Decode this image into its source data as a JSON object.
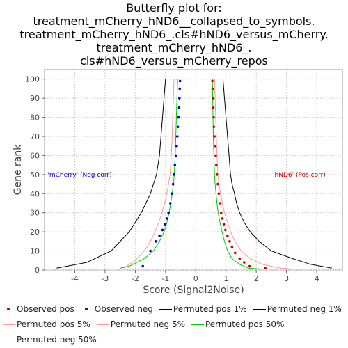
{
  "chart_data": {
    "type": "scatter",
    "title_lines": [
      "Butterfly plot for:",
      "treatment_mCherry_hND6__collapsed_to_symbols.",
      "treatment_mCherry_hND6_.cls#hND6_versus_mCherry.",
      "treatment_mCherry_hND6_.",
      "cls#hND6_versus_mCherry_repos"
    ],
    "xlabel": "Score (Signal2Noise)",
    "ylabel": "Gene rank",
    "xlim": [
      -5.0,
      4.85
    ],
    "ylim": [
      0,
      105
    ],
    "x_ticks": [
      -4,
      -3,
      -2,
      -1,
      0,
      1,
      2,
      3,
      4
    ],
    "y_ticks": [
      0,
      10,
      20,
      30,
      40,
      50,
      60,
      70,
      80,
      90,
      100
    ],
    "grid": true,
    "annotations": [
      {
        "text": "'mCherry' (Neg corr)",
        "color": "#0000cc",
        "x": -4.9,
        "y": 50
      },
      {
        "text": "'hND6' (Pos corr)",
        "color": "#cc0000",
        "x": 2.55,
        "y": 50
      }
    ],
    "series": [
      {
        "name": "Observed pos",
        "kind": "points",
        "color": "#cc0000",
        "x": [
          0.55,
          0.56,
          0.57,
          0.58,
          0.59,
          0.6,
          0.62,
          0.64,
          0.66,
          0.68,
          0.7,
          0.73,
          0.76,
          0.8,
          0.84,
          0.88,
          0.93,
          0.98,
          1.05,
          1.12,
          1.2,
          1.3,
          1.45,
          1.6,
          1.78,
          2.3
        ],
        "y": [
          99,
          95,
          90,
          85,
          80,
          75,
          70,
          65,
          60,
          55,
          50,
          45,
          40,
          35,
          30,
          27,
          24,
          21,
          18,
          15,
          12,
          9,
          6,
          4,
          2,
          1
        ]
      },
      {
        "name": "Observed neg",
        "kind": "points",
        "color": "#0000cc",
        "x": [
          -0.52,
          -0.53,
          -0.54,
          -0.55,
          -0.57,
          -0.59,
          -0.61,
          -0.63,
          -0.66,
          -0.69,
          -0.72,
          -0.75,
          -0.79,
          -0.84,
          -0.9,
          -0.96,
          -1.02,
          -1.1,
          -1.2,
          -1.32,
          -1.5,
          -1.75
        ],
        "y": [
          99,
          95,
          90,
          85,
          80,
          75,
          70,
          65,
          60,
          55,
          50,
          45,
          40,
          35,
          30,
          27,
          24,
          21,
          18,
          15,
          10,
          2
        ]
      },
      {
        "name": "Permuted pos 1%",
        "kind": "line",
        "color": "#000000",
        "x": [
          0.9,
          0.95,
          1.0,
          1.05,
          1.1,
          1.15,
          1.2,
          1.28,
          1.35,
          1.45,
          1.6,
          1.8,
          2.1,
          2.5,
          3.2,
          3.8,
          4.5
        ],
        "y": [
          100,
          90,
          80,
          70,
          60,
          50,
          45,
          40,
          35,
          30,
          25,
          20,
          15,
          10,
          6,
          3,
          1
        ]
      },
      {
        "name": "Permuted neg 1%",
        "kind": "line",
        "color": "#000000",
        "x": [
          -1.0,
          -1.05,
          -1.1,
          -1.15,
          -1.2,
          -1.3,
          -1.4,
          -1.5,
          -1.65,
          -1.8,
          -2.0,
          -2.2,
          -2.5,
          -2.8,
          -3.6,
          -4.6
        ],
        "y": [
          100,
          90,
          80,
          70,
          60,
          50,
          45,
          40,
          35,
          30,
          25,
          20,
          15,
          10,
          4,
          1
        ]
      },
      {
        "name": "Permuted pos 5%",
        "kind": "line",
        "color": "#ff9999",
        "x": [
          0.62,
          0.64,
          0.66,
          0.68,
          0.7,
          0.73,
          0.77,
          0.82,
          0.88,
          0.95,
          1.05,
          1.15,
          1.3,
          1.5,
          1.8,
          2.2,
          2.8,
          3.2
        ],
        "y": [
          100,
          90,
          80,
          70,
          60,
          50,
          45,
          40,
          35,
          30,
          25,
          20,
          15,
          10,
          6,
          3,
          1,
          0.5
        ]
      },
      {
        "name": "Permuted neg 5%",
        "kind": "line",
        "color": "#ff9999",
        "x": [
          -0.72,
          -0.74,
          -0.76,
          -0.78,
          -0.81,
          -0.85,
          -0.9,
          -0.96,
          -1.03,
          -1.12,
          -1.22,
          -1.35,
          -1.5,
          -1.7,
          -2.0,
          -2.4
        ],
        "y": [
          100,
          90,
          80,
          70,
          60,
          50,
          45,
          40,
          35,
          30,
          25,
          20,
          15,
          10,
          5,
          1
        ]
      },
      {
        "name": "Permuted pos 50%",
        "kind": "line",
        "color": "#00cc00",
        "x": [
          0.55,
          0.56,
          0.57,
          0.58,
          0.6,
          0.62,
          0.64,
          0.67,
          0.7,
          0.74,
          0.8,
          0.87,
          0.95,
          1.05,
          1.2,
          1.45,
          1.75,
          2.2
        ],
        "y": [
          100,
          90,
          80,
          70,
          60,
          50,
          45,
          40,
          35,
          30,
          25,
          20,
          15,
          10,
          6,
          3,
          1,
          0.5
        ]
      },
      {
        "name": "Permuted neg 50%",
        "kind": "line",
        "color": "#00cc00",
        "x": [
          -0.6,
          -0.62,
          -0.64,
          -0.66,
          -0.68,
          -0.71,
          -0.74,
          -0.78,
          -0.83,
          -0.88,
          -0.95,
          -1.05,
          -1.2,
          -1.4,
          -1.7,
          -2.2,
          -2.5
        ],
        "y": [
          100,
          90,
          80,
          70,
          60,
          50,
          45,
          40,
          35,
          30,
          25,
          20,
          15,
          10,
          6,
          2,
          1
        ]
      }
    ]
  },
  "legend": {
    "row1": [
      "Observed pos",
      "Observed neg",
      "Permuted pos 1%",
      "Permuted neg 1%"
    ],
    "row2": [
      "Permuted pos 5%",
      "Permuted neg 5%",
      "Permuted pos 50%"
    ],
    "row3": [
      "Permuted neg 50%"
    ]
  }
}
